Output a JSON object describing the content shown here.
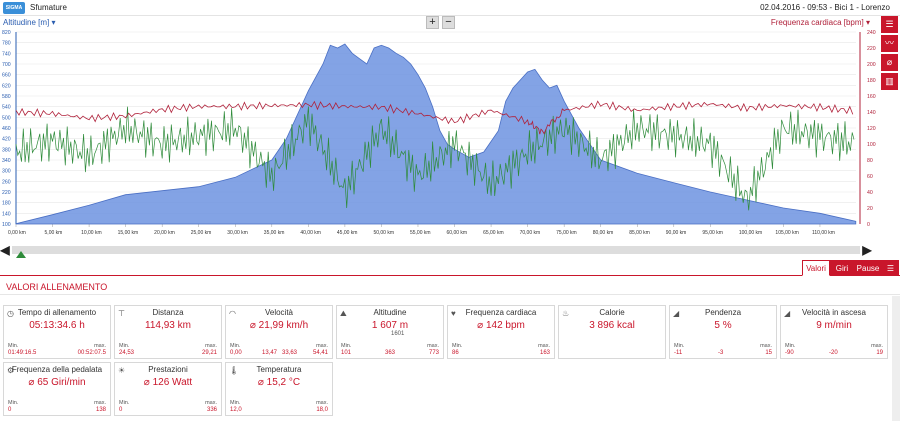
{
  "app": {
    "logo_text": "SIGMA",
    "title": "Sfumature",
    "date": "02.04.2016",
    "time": "09:53",
    "bike": "Bici 1",
    "user": "Lorenzo"
  },
  "chart": {
    "left_axis_title": "Altitudine [m]",
    "right_axis_title": "Frequenza cardiaca [bpm]",
    "zoom_in": "+",
    "zoom_out": "−"
  },
  "chart_data": {
    "type": "area",
    "xlabel": "",
    "x_ticks": [
      "0,00 km",
      "5,00 km",
      "10,00 km",
      "15,00 km",
      "20,00 km",
      "25,00 km",
      "30,00 km",
      "35,00 km",
      "40,00 km",
      "45,00 km",
      "50,00 km",
      "55,00 km",
      "60,00 km",
      "65,00 km",
      "70,00 km",
      "75,00 km",
      "80,00 km",
      "85,00 km",
      "90,00 km",
      "95,00 km",
      "100,00 km",
      "105,00 km",
      "110,00 km"
    ],
    "xlim": [
      0,
      114.93
    ],
    "left_ylim": [
      100,
      820
    ],
    "left_ticks": [
      820,
      780,
      740,
      700,
      660,
      620,
      580,
      540,
      500,
      460,
      420,
      380,
      340,
      300,
      260,
      220,
      180,
      140,
      100
    ],
    "right_ylim": [
      0,
      240
    ],
    "right_ticks": [
      240,
      220,
      200,
      180,
      160,
      140,
      120,
      100,
      80,
      60,
      40,
      20,
      0
    ],
    "series": [
      {
        "name": "Altitudine [m]",
        "color": "#6d93e0",
        "x": [
          0,
          5,
          10,
          15,
          20,
          25,
          30,
          35,
          37,
          40,
          42,
          43,
          44,
          45,
          46,
          47,
          48,
          49,
          50,
          51,
          52,
          53,
          54,
          55,
          56,
          57,
          58,
          59,
          60,
          62,
          64,
          66,
          67,
          68,
          69,
          70,
          71,
          72,
          73,
          74,
          75,
          77,
          79,
          80,
          85,
          90,
          95,
          100,
          105,
          110,
          114.9
        ],
        "y": [
          101,
          135,
          170,
          210,
          225,
          240,
          275,
          340,
          420,
          600,
          700,
          770,
          760,
          775,
          740,
          720,
          700,
          760,
          770,
          760,
          740,
          725,
          700,
          660,
          610,
          540,
          450,
          400,
          380,
          350,
          370,
          450,
          560,
          610,
          640,
          670,
          680,
          640,
          610,
          620,
          560,
          460,
          380,
          340,
          290,
          255,
          220,
          190,
          160,
          140,
          110
        ]
      },
      {
        "name": "Frequenza cardiaca [bpm]",
        "color": "#b0213a",
        "x": [
          0,
          5,
          10,
          15,
          20,
          25,
          30,
          35,
          40,
          45,
          50,
          55,
          60,
          65,
          70,
          72,
          75,
          80,
          85,
          90,
          95,
          100,
          105,
          110,
          114.9
        ],
        "y": [
          140,
          138,
          132,
          135,
          143,
          147,
          147,
          148,
          149,
          147,
          146,
          138,
          128,
          142,
          128,
          115,
          142,
          150,
          142,
          147,
          150,
          145,
          148,
          146,
          141
        ]
      },
      {
        "name": "Frequenza della pedalata",
        "color": "#2e8b3a",
        "x": [
          0,
          5,
          10,
          15,
          20,
          25,
          30,
          35,
          40,
          45,
          50,
          55,
          60,
          65,
          70,
          75,
          80,
          85,
          90,
          95,
          100,
          105,
          110,
          114.9
        ],
        "y": [
          90,
          105,
          85,
          120,
          100,
          110,
          120,
          60,
          130,
          40,
          120,
          60,
          100,
          50,
          90,
          120,
          80,
          120,
          110,
          100,
          30,
          120,
          110,
          100
        ]
      }
    ]
  },
  "scroll": {
    "left": "◀",
    "right": "▶"
  },
  "tabs": [
    {
      "label": "Valori"
    },
    {
      "label": "Giri"
    },
    {
      "label": "Pause"
    }
  ],
  "section_title": "VALORI ALLENAMENTO",
  "labels": {
    "min": "Min.",
    "max": "max."
  },
  "cards": [
    {
      "icon": "◷",
      "title": "Tempo di allenamento",
      "value": "05:13:34.6 h",
      "min": "01:49:16.5",
      "max": "00:52:07.5"
    },
    {
      "icon": "⊤",
      "title": "Distanza",
      "value": "114,93 km",
      "min": "24,53",
      "max": "29,21"
    },
    {
      "icon": "◠",
      "title": "Velocità",
      "value": "⌀ 21,99 km/h",
      "min": "0,00",
      "max": "54,41",
      "avg1": "13,47",
      "avg2": "33,63"
    },
    {
      "icon": "⛰",
      "title": "Altitudine",
      "value": "1 607 m",
      "sub": "1601",
      "min": "101",
      "max": "773",
      "avg1": "363"
    },
    {
      "icon": "♥",
      "title": "Frequenza cardiaca",
      "value": "⌀ 142 bpm",
      "min": "86",
      "max": "163"
    },
    {
      "icon": "♨",
      "title": "Calorie",
      "value": "3 896 kcal"
    },
    {
      "icon": "◢",
      "title": "Pendenza",
      "value": "5 %",
      "min": "-11",
      "max": "15",
      "avg1": "-3"
    },
    {
      "icon": "◢",
      "title": "Velocità in ascesa",
      "value": "9 m/min",
      "min": "-90",
      "max": "19",
      "avg1": "-20"
    },
    {
      "icon": "⚙",
      "title": "Frequenza della pedalata",
      "value": "⌀ 65 Giri/min",
      "min": "0",
      "max": "138"
    },
    {
      "icon": "☀",
      "title": "Prestazioni",
      "value": "⌀ 126 Watt",
      "min": "0",
      "max": "336"
    },
    {
      "icon": "🌡",
      "title": "Temperatura",
      "value": "⌀ 15,2 °C",
      "min": "12,0",
      "max": "18,0"
    }
  ]
}
